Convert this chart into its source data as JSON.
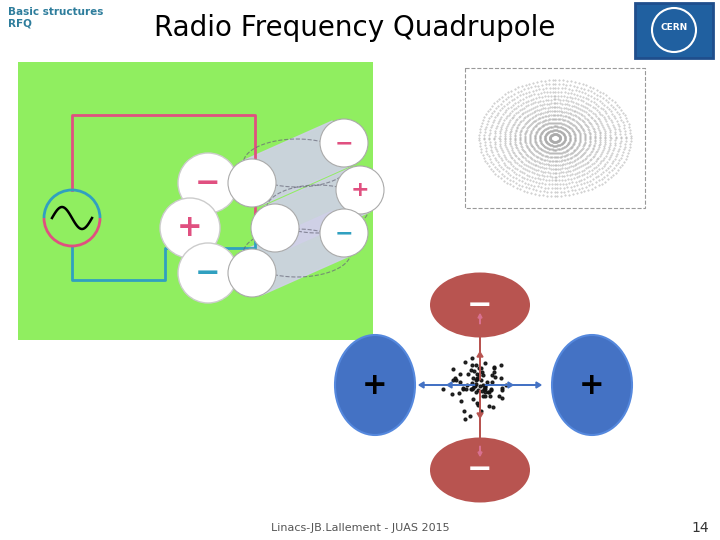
{
  "title": "Radio Frequency Quadrupole",
  "subtitle_line1": "Basic structures",
  "subtitle_line2": "RFQ",
  "subtitle_color": "#2E7D9C",
  "title_color": "#000000",
  "footer_text": "Linacs-JB.Lallement - JUAS 2015",
  "footer_number": "14",
  "bg_color": "#ffffff",
  "green_box_color": "#90EE60",
  "blue_ellipse_color": "#4472C4",
  "red_ellipse_color": "#B85450",
  "ac_circle_top_color": "#E05080",
  "ac_circle_bot_color": "#30A0C0",
  "wire_red_color": "#E05080",
  "wire_blue_color": "#30A0C0",
  "electrode_sign_red": "#E05080",
  "electrode_sign_blue": "#30A0C0",
  "rod_fill": "#D0D0E8",
  "rod_edge": "#A0A0B8"
}
